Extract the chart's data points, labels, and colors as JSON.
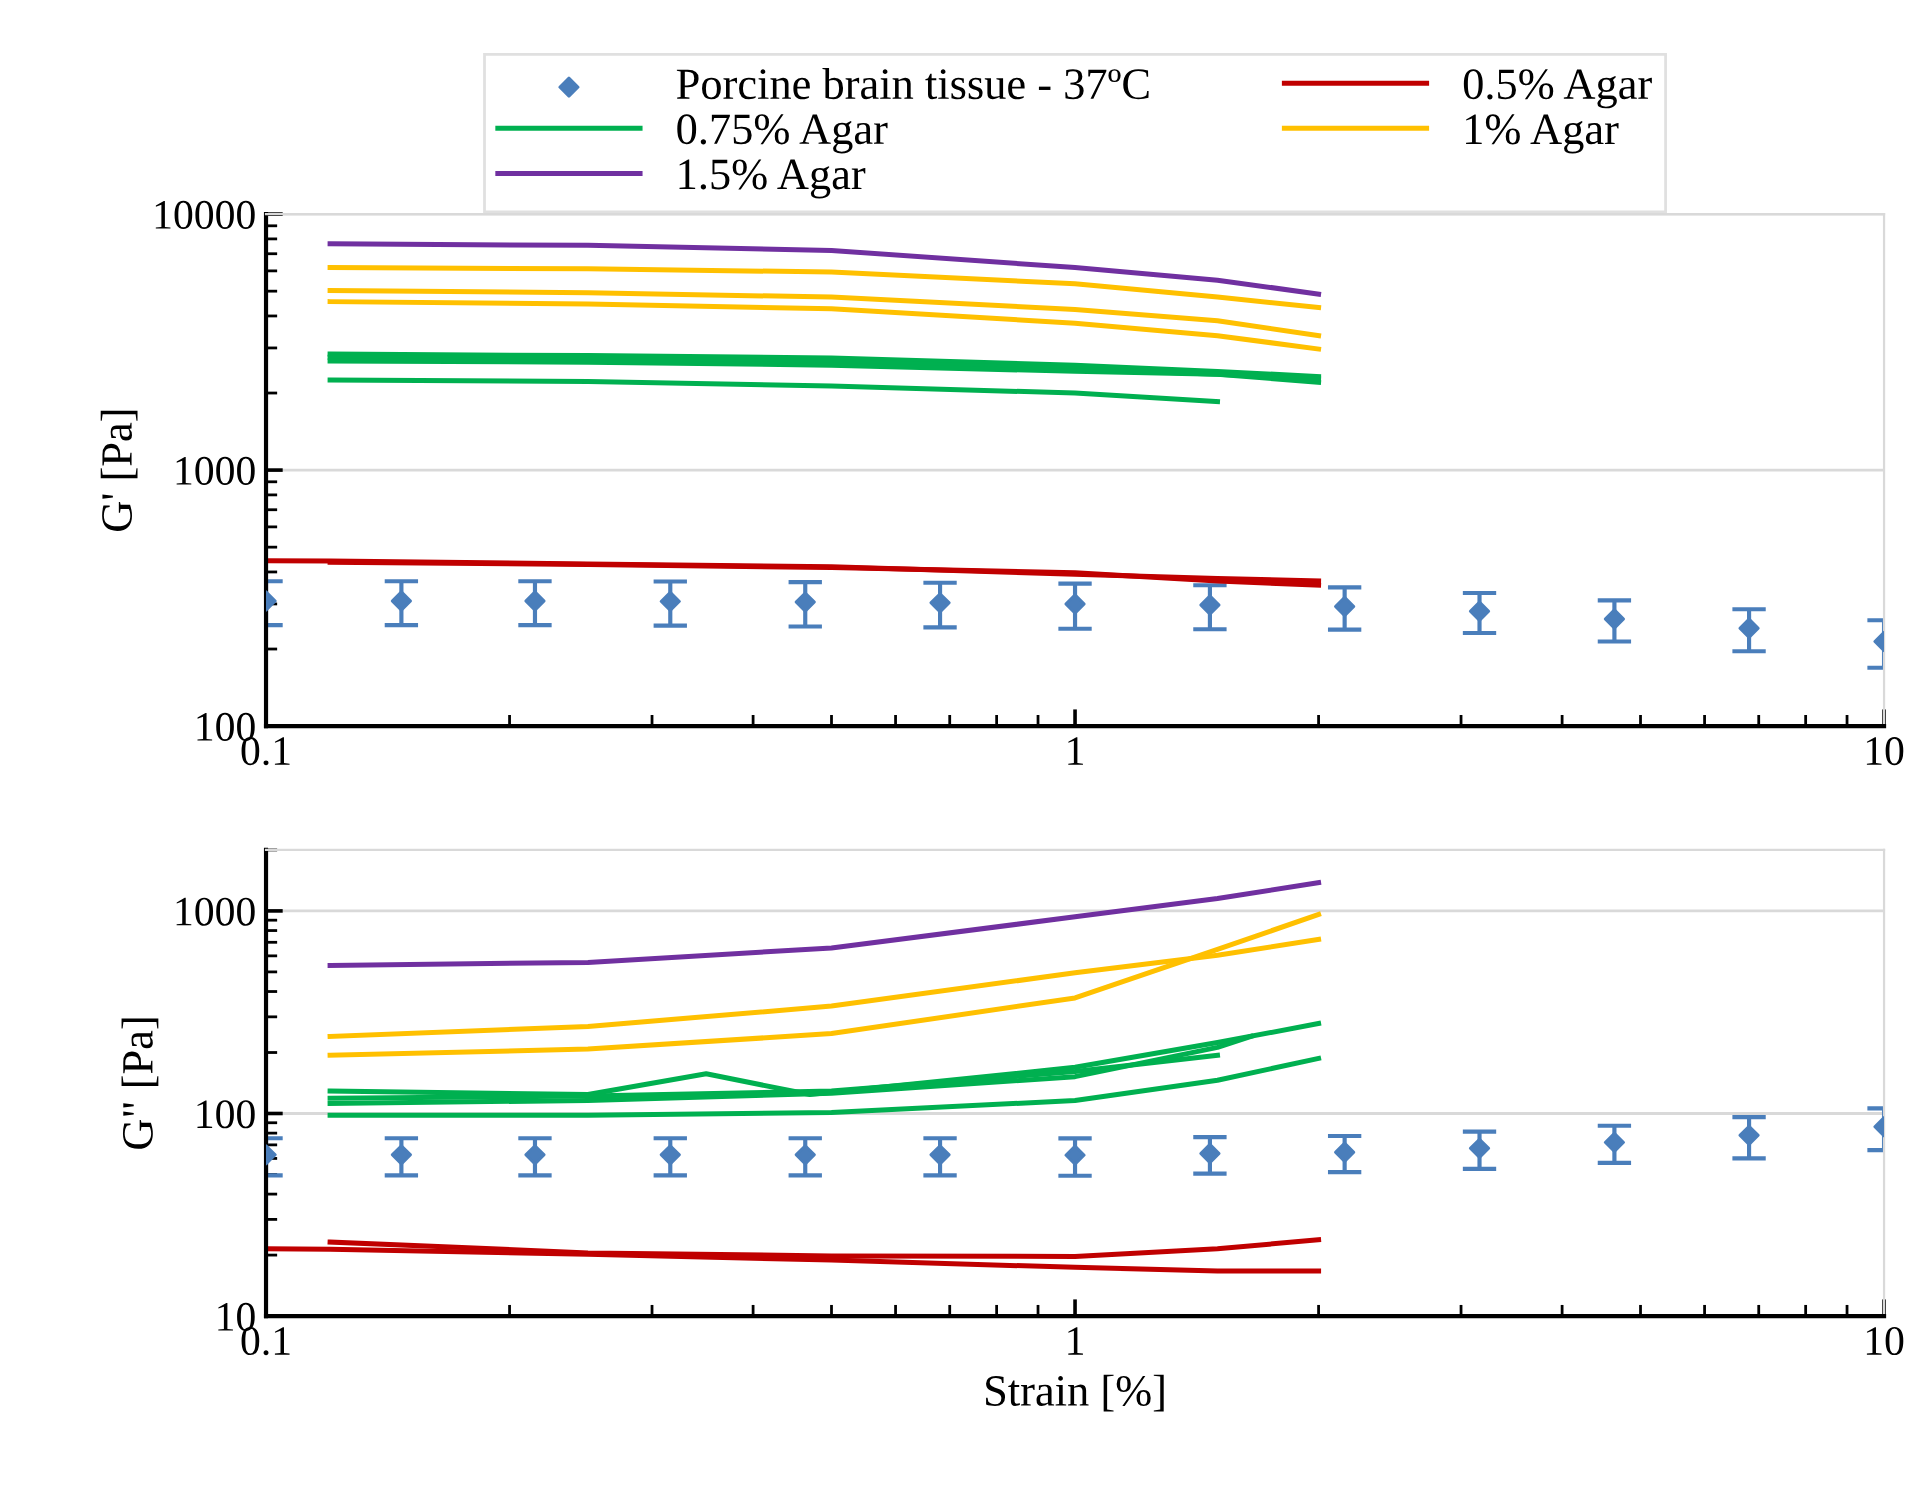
{
  "chart_data": [
    {
      "type": "line",
      "ylabel": "G' [Pa]",
      "log": "xy",
      "xlim": [
        0.1,
        10
      ],
      "xticks": [
        0.1,
        1,
        10
      ],
      "ylim": [
        100,
        10000
      ],
      "yticks": [
        100,
        1000,
        10000
      ],
      "grid": "y",
      "legend": "top",
      "series": [
        {
          "name": "Porcine brain tissue - 37ºC",
          "type": "scatter",
          "marker": "diamond",
          "color": "#4a7ebb",
          "x": [
            0.1,
            0.147,
            0.215,
            0.316,
            0.464,
            0.681,
            1,
            1.468,
            2.154,
            3.162,
            4.642,
            6.81,
            10
          ],
          "values": [
            308,
            308,
            308,
            307,
            305,
            303,
            300,
            297,
            293,
            281,
            262,
            241,
            214
          ],
          "errors": [
            60,
            60,
            60,
            60,
            60,
            60,
            60,
            58,
            55,
            50,
            48,
            45,
            45
          ]
        },
        {
          "name": "0.5% Agar",
          "color": "#c00000",
          "x": [
            0.1,
            0.12,
            0.25,
            0.5,
            1,
            1.5,
            2
          ],
          "values": [
            442,
            441,
            430,
            419,
            392,
            377,
            369
          ]
        },
        {
          "color": "#c00000",
          "x": [
            0.12,
            0.25,
            0.5,
            1,
            1.5,
            2
          ],
          "values": [
            436,
            428,
            416,
            397,
            369,
            355
          ]
        },
        {
          "name": "0.75% Agar",
          "color": "#00b050",
          "x": [
            0.12,
            0.25,
            0.5,
            1,
            1.5,
            2
          ],
          "values": [
            2840,
            2800,
            2740,
            2570,
            2430,
            2320
          ]
        },
        {
          "color": "#00b050",
          "x": [
            0.12,
            0.25,
            0.5,
            1,
            1.5,
            2
          ],
          "values": [
            2760,
            2720,
            2660,
            2480,
            2370,
            2200
          ]
        },
        {
          "color": "#00b050",
          "x": [
            0.12,
            0.25,
            0.5,
            1,
            1.5,
            2
          ],
          "values": [
            2670,
            2640,
            2570,
            2430,
            2370,
            2270
          ]
        },
        {
          "color": "#00b050",
          "x": [
            0.12,
            0.25,
            0.5,
            1,
            1.5
          ],
          "values": [
            2250,
            2220,
            2130,
            2000,
            1850
          ]
        },
        {
          "name": "1% Agar",
          "color": "#ffc000",
          "x": [
            0.12,
            0.25,
            0.5,
            1,
            1.5,
            2
          ],
          "values": [
            6180,
            6110,
            5940,
            5340,
            4740,
            4320
          ]
        },
        {
          "color": "#ffc000",
          "x": [
            0.12,
            0.25,
            0.5,
            1,
            1.5,
            2
          ],
          "values": [
            5030,
            4930,
            4740,
            4240,
            3830,
            3350
          ]
        },
        {
          "color": "#ffc000",
          "x": [
            0.12,
            0.25,
            0.5,
            1,
            1.5,
            2
          ],
          "values": [
            4550,
            4450,
            4270,
            3750,
            3350,
            2970
          ]
        },
        {
          "name": "1.5% Agar",
          "color": "#7030a0",
          "x": [
            0.12,
            0.25,
            0.5,
            1,
            1.5,
            2
          ],
          "values": [
            7650,
            7550,
            7210,
            6180,
            5520,
            4870
          ]
        }
      ]
    },
    {
      "type": "line",
      "xlabel": "Strain [%]",
      "ylabel": "G\" [Pa]",
      "log": "xy",
      "xlim": [
        0.1,
        10
      ],
      "xticks": [
        0.1,
        1,
        10
      ],
      "ylim": [
        10,
        2000
      ],
      "yticks": [
        10,
        100,
        1000
      ],
      "grid": "y",
      "series": [
        {
          "type": "scatter",
          "marker": "diamond",
          "color": "#4a7ebb",
          "x": [
            0.1,
            0.147,
            0.215,
            0.316,
            0.464,
            0.681,
            1,
            1.468,
            2.154,
            3.162,
            4.642,
            6.81,
            10
          ],
          "values": [
            62.5,
            62.5,
            62.5,
            62.5,
            62.5,
            62.5,
            62.3,
            63.5,
            64.4,
            67.3,
            72,
            78,
            86
          ],
          "errors": [
            13,
            13,
            13,
            13,
            13,
            13,
            13,
            13,
            13,
            14,
            15,
            18,
            20
          ]
        },
        {
          "color": "#c00000",
          "x": [
            0.1,
            0.12,
            0.25,
            0.5,
            1,
            1.5,
            2
          ],
          "values": [
            21.5,
            21.4,
            20.2,
            18.9,
            17.4,
            16.7,
            16.7
          ]
        },
        {
          "color": "#c00000",
          "x": [
            0.12,
            0.25,
            0.5,
            1,
            1.5,
            2
          ],
          "values": [
            23.2,
            20.5,
            19.8,
            19.7,
            21.5,
            23.8
          ]
        },
        {
          "color": "#00b050",
          "x": [
            0.12,
            0.25,
            0.35,
            0.47,
            1,
            1.5,
            2
          ],
          "values": [
            129,
            124,
            157,
            124,
            169,
            224,
            278
          ]
        },
        {
          "color": "#00b050",
          "x": [
            0.12,
            0.25,
            0.5,
            1,
            1.5
          ],
          "values": [
            119,
            122,
            129,
            161,
            194
          ]
        },
        {
          "color": "#00b050",
          "x": [
            0.12,
            0.25,
            0.5,
            1,
            1.5,
            1.65
          ],
          "values": [
            112,
            116,
            126,
            152,
            212,
            240
          ]
        },
        {
          "color": "#00b050",
          "x": [
            0.12,
            0.25,
            0.5,
            1,
            1.5,
            2
          ],
          "values": [
            98,
            98,
            101,
            116,
            146,
            187
          ]
        },
        {
          "color": "#ffc000",
          "x": [
            0.12,
            0.25,
            0.5,
            1,
            1.5,
            2
          ],
          "values": [
            240,
            269,
            339,
            495,
            604,
            724
          ]
        },
        {
          "color": "#ffc000",
          "x": [
            0.12,
            0.25,
            0.5,
            1,
            1.5,
            2
          ],
          "values": [
            194,
            208,
            248,
            372,
            646,
            960
          ]
        },
        {
          "color": "#7030a0",
          "x": [
            0.12,
            0.25,
            0.5,
            1,
            1.5,
            2
          ],
          "values": [
            538,
            557,
            656,
            935,
            1151,
            1380
          ]
        }
      ]
    }
  ]
}
